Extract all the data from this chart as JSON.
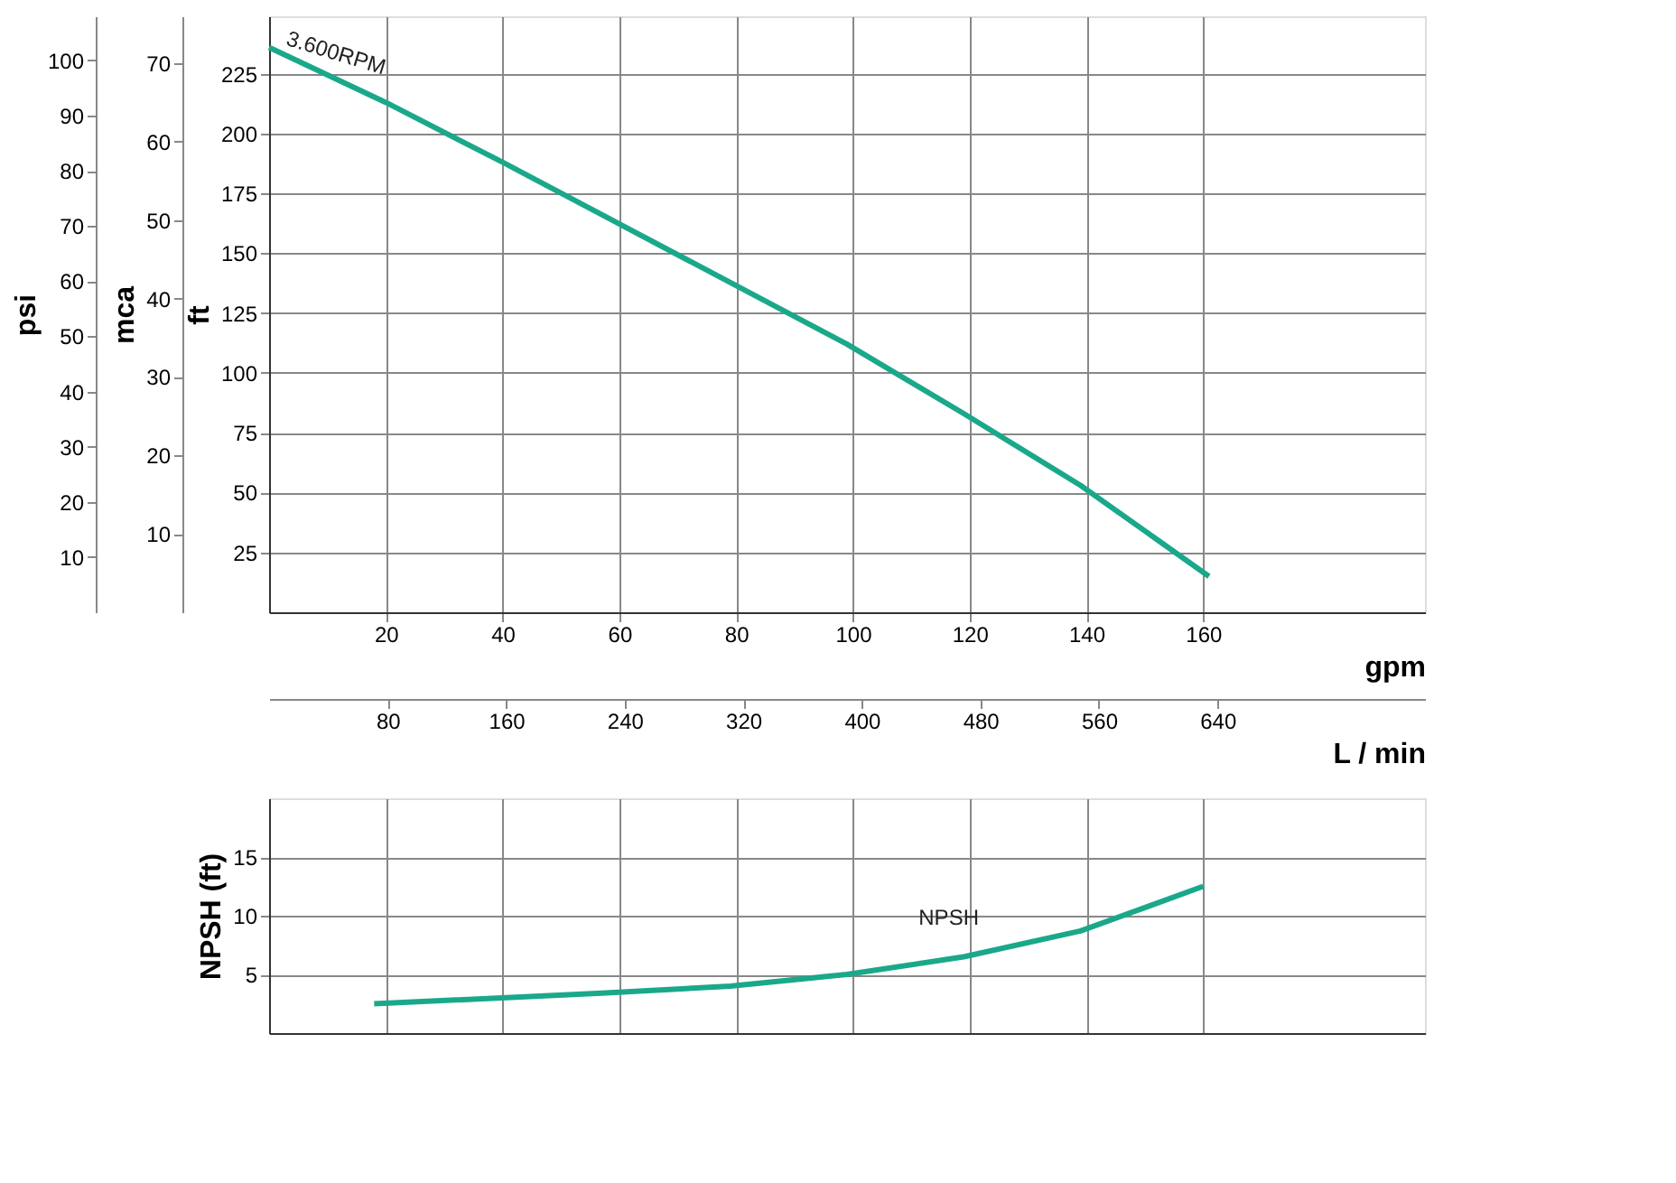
{
  "chart_data": [
    {
      "type": "line",
      "xlabel": "gpm",
      "x2label": "L / min",
      "ylabel": "ft",
      "y2label": "mca",
      "y3label": "psi",
      "xlim": [
        0,
        198
      ],
      "xticks": [
        20,
        40,
        60,
        80,
        100,
        120,
        140,
        160
      ],
      "x2lim": [
        0,
        780
      ],
      "x2ticks": [
        80,
        160,
        240,
        320,
        400,
        480,
        560,
        640
      ],
      "ylim": [
        0,
        249
      ],
      "yticks": [
        25,
        50,
        75,
        100,
        125,
        150,
        175,
        200,
        225
      ],
      "y2lim": [
        0,
        76
      ],
      "y2ticks": [
        10,
        20,
        30,
        40,
        50,
        60,
        70
      ],
      "y3lim": [
        0,
        108
      ],
      "y3ticks": [
        10,
        20,
        30,
        40,
        50,
        60,
        70,
        80,
        90,
        100
      ],
      "grid": true,
      "series": [
        {
          "name": "3.600RPM",
          "color": "#1aa88a",
          "x": [
            0,
            20,
            40,
            99,
            119,
            139,
            161
          ],
          "values": [
            236,
            213,
            188,
            112,
            83,
            53,
            15
          ]
        }
      ]
    },
    {
      "type": "line",
      "ylabel": "NPSH (ft)",
      "xlim": [
        0,
        198
      ],
      "xticks": [
        20,
        40,
        60,
        80,
        100,
        120,
        140,
        160
      ],
      "ylim": [
        0,
        20
      ],
      "yticks": [
        5,
        10,
        15
      ],
      "grid": true,
      "tick_labels": "y",
      "series": [
        {
          "name": "NPSH",
          "color": "#1aa88a",
          "x": [
            18,
            57,
            79,
            99,
            119,
            139,
            160
          ],
          "values": [
            2.5,
            3.4,
            4.0,
            5.0,
            6.5,
            8.7,
            12.5
          ]
        }
      ]
    }
  ]
}
